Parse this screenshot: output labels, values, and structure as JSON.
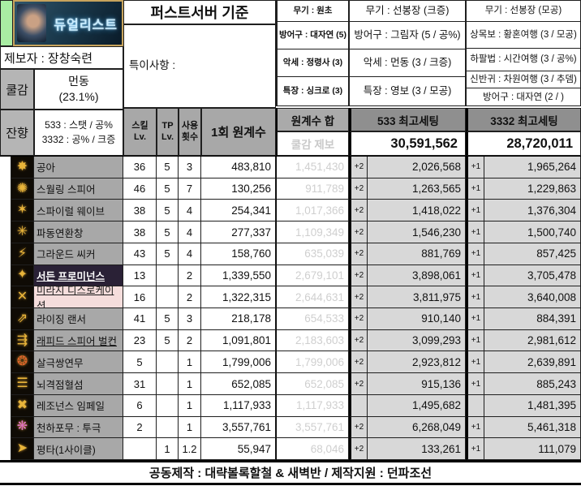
{
  "banner": {
    "class_name": "듀얼리스트"
  },
  "left_panel": {
    "reporter": "제보자 : 장창숙련",
    "cooldown": {
      "label": "쿨감",
      "line1": "먼동",
      "line2": "(23.1%)"
    },
    "echo": {
      "label": "잔향",
      "line1": "533 : 스탯 / 공%",
      "line2": "3332 : 공% / 크증"
    }
  },
  "center": {
    "title": "퍼스트서버 기준",
    "notes_label": "특이사항 :"
  },
  "equipment": {
    "base": [
      "무기 : 원초",
      "방어구 : 대자연 (5)",
      "악세 : 정령사 (3)",
      "특장 : 싱크로 (3)"
    ],
    "setting_533": [
      "무기 : 선봉장 (크증)",
      "방어구 : 그림자 (5 / 공%)",
      "악세 : 먼동 (3 / 크증)",
      "특장 : 영보 (3 / 모공)"
    ],
    "setting_3332": [
      "무기 : 선봉장 (모공)",
      "상목보 : 황혼여행 (3 / 모공)",
      "하팔법 : 시간여행 (3 / 공%)",
      "신반귀 : 차원여행 (3 / 추뎀)",
      "방어구 : 대자연 (2 / )"
    ]
  },
  "table": {
    "headers": {
      "skill_lv_1": "스킬",
      "skill_lv_2": "Lv.",
      "tp_1": "TP",
      "tp_2": "Lv.",
      "count_1": "사용",
      "count_2": "횟수",
      "per_hit": "1회 원계수",
      "coeff_sum": "원계수 합",
      "cooldown_report": "쿨감 제보",
      "best_533": "533 최고세팅",
      "best_533_total": "30,591,562",
      "best_3332": "3332 최고세팅",
      "best_3332_total": "28,720,011"
    },
    "rows": [
      {
        "name": "공아",
        "icon": "claw-slash-icon",
        "icon_glyph": "✸",
        "icon_color": "#e8b43a",
        "name_class": "",
        "underline": false,
        "skill_lv": "36",
        "tp_lv": "5",
        "use_count": "3",
        "per_hit": "483,810",
        "coeff_sum": "1,451,430",
        "badge_533": "+2",
        "value_533": "2,026,568",
        "badge_3332": "+1",
        "value_3332": "1,965,264"
      },
      {
        "name": "스월링 스피어",
        "icon": "swirling-spear-icon",
        "icon_glyph": "✺",
        "icon_color": "#e8b43a",
        "name_class": "",
        "underline": false,
        "skill_lv": "46",
        "tp_lv": "5",
        "use_count": "7",
        "per_hit": "130,256",
        "coeff_sum": "911,789",
        "badge_533": "+2",
        "value_533": "1,263,565",
        "badge_3332": "+1",
        "value_3332": "1,229,863"
      },
      {
        "name": "스파이럴 웨이브",
        "icon": "spiral-wave-icon",
        "icon_glyph": "✶",
        "icon_color": "#e8b43a",
        "name_class": "",
        "underline": false,
        "skill_lv": "38",
        "tp_lv": "5",
        "use_count": "4",
        "per_hit": "254,341",
        "coeff_sum": "1,017,366",
        "badge_533": "+2",
        "value_533": "1,418,022",
        "badge_3332": "+1",
        "value_3332": "1,376,304"
      },
      {
        "name": "파동연환창",
        "icon": "wave-chain-spear-icon",
        "icon_glyph": "✳",
        "icon_color": "#e8b43a",
        "name_class": "",
        "underline": false,
        "skill_lv": "38",
        "tp_lv": "5",
        "use_count": "4",
        "per_hit": "277,337",
        "coeff_sum": "1,109,349",
        "badge_533": "+2",
        "value_533": "1,546,230",
        "badge_3332": "+1",
        "value_3332": "1,500,740"
      },
      {
        "name": "그라운드 씨커",
        "icon": "ground-seeker-icon",
        "icon_glyph": "⚡",
        "icon_color": "#e8b43a",
        "name_class": "",
        "underline": false,
        "skill_lv": "43",
        "tp_lv": "5",
        "use_count": "4",
        "per_hit": "158,760",
        "coeff_sum": "635,039",
        "badge_533": "+2",
        "value_533": "881,769",
        "badge_3332": "+1",
        "value_3332": "857,425"
      },
      {
        "name": "서든 프로미넌스",
        "icon": "sudden-prominence-icon",
        "icon_glyph": "✦",
        "icon_color": "#e8b43a",
        "name_class": "dark",
        "underline": true,
        "skill_lv": "13",
        "tp_lv": "",
        "use_count": "2",
        "per_hit": "1,339,550",
        "coeff_sum": "2,679,101",
        "badge_533": "+2",
        "value_533": "3,898,061",
        "badge_3332": "+1",
        "value_3332": "3,705,478"
      },
      {
        "name": "미라지 디스로케이션",
        "icon": "mirage-dislocation-icon",
        "icon_glyph": "✕",
        "icon_color": "#e8b43a",
        "name_class": "pink",
        "underline": true,
        "skill_lv": "16",
        "tp_lv": "",
        "use_count": "2",
        "per_hit": "1,322,315",
        "coeff_sum": "2,644,631",
        "badge_533": "+2",
        "value_533": "3,811,975",
        "badge_3332": "+1",
        "value_3332": "3,640,008"
      },
      {
        "name": "라이징 랜서",
        "icon": "rising-lancer-icon",
        "icon_glyph": "⇗",
        "icon_color": "#e8b43a",
        "name_class": "",
        "underline": false,
        "skill_lv": "41",
        "tp_lv": "5",
        "use_count": "3",
        "per_hit": "218,178",
        "coeff_sum": "654,533",
        "badge_533": "+2",
        "value_533": "910,140",
        "badge_3332": "+1",
        "value_3332": "884,391"
      },
      {
        "name": "래피드 스피어 벌컨",
        "icon": "rapid-spear-vulcan-icon",
        "icon_glyph": "⇶",
        "icon_color": "#e8b43a",
        "name_class": "",
        "underline": true,
        "skill_lv": "23",
        "tp_lv": "5",
        "use_count": "2",
        "per_hit": "1,091,801",
        "coeff_sum": "2,183,603",
        "badge_533": "+2",
        "value_533": "3,099,293",
        "badge_3332": "+1",
        "value_3332": "2,981,612"
      },
      {
        "name": "살극쌍연무",
        "icon": "deadly-twin-dance-icon",
        "icon_glyph": "❂",
        "icon_color": "#e0622a",
        "name_class": "",
        "underline": false,
        "skill_lv": "5",
        "tp_lv": "",
        "use_count": "1",
        "per_hit": "1,799,006",
        "coeff_sum": "1,799,006",
        "badge_533": "+2",
        "value_533": "2,923,812",
        "badge_3332": "+1",
        "value_3332": "2,639,891"
      },
      {
        "name": "뇌격점혈섬",
        "icon": "lightning-point-flash-icon",
        "icon_glyph": "☰",
        "icon_color": "#e8b43a",
        "name_class": "",
        "underline": false,
        "skill_lv": "31",
        "tp_lv": "",
        "use_count": "1",
        "per_hit": "652,085",
        "coeff_sum": "652,085",
        "badge_533": "+2",
        "value_533": "915,136",
        "badge_3332": "+1",
        "value_3332": "885,243"
      },
      {
        "name": "레조넌스 임페일",
        "icon": "resonance-impale-icon",
        "icon_glyph": "✖",
        "icon_color": "#e8b43a",
        "name_class": "",
        "underline": false,
        "skill_lv": "6",
        "tp_lv": "",
        "use_count": "1",
        "per_hit": "1,117,933",
        "coeff_sum": "1,117,933",
        "badge_533": "",
        "value_533": "1,495,682",
        "badge_3332": "",
        "value_3332": "1,481,395"
      },
      {
        "name": "천하포무 : 투극",
        "icon": "world-domination-burst-icon",
        "icon_glyph": "❋",
        "icon_color": "#e070c8",
        "name_class": "",
        "underline": false,
        "skill_lv": "2",
        "tp_lv": "",
        "use_count": "1",
        "per_hit": "3,557,761",
        "coeff_sum": "3,557,761",
        "badge_533": "+2",
        "value_533": "6,268,049",
        "badge_3332": "+1",
        "value_3332": "5,461,318"
      },
      {
        "name": "평타(1사이클)",
        "icon": "basic-attack-icon",
        "icon_glyph": "➤",
        "icon_color": "#e8b43a",
        "name_class": "",
        "underline": false,
        "skill_lv": "",
        "tp_lv": "1",
        "use_count": "1.2",
        "per_hit": "55,947",
        "coeff_sum": "68,046",
        "badge_533": "+2",
        "value_533": "133,261",
        "badge_3332": "+1",
        "value_3332": "111,079"
      }
    ]
  },
  "footer": "공동제작 : 대략볼록할철 & 새벽반 / 제작지원 : 던파조선",
  "colors": {
    "accent_green": "#a9eda3",
    "header_gray": "#a8a8a8",
    "dark_header_gray": "#8f8f8f",
    "value_cell_gray": "#d8d8d8",
    "highlight_purple": "#2a2136",
    "highlight_pink": "#f5dddc",
    "banner_glow_blue": "#38a6e8"
  }
}
